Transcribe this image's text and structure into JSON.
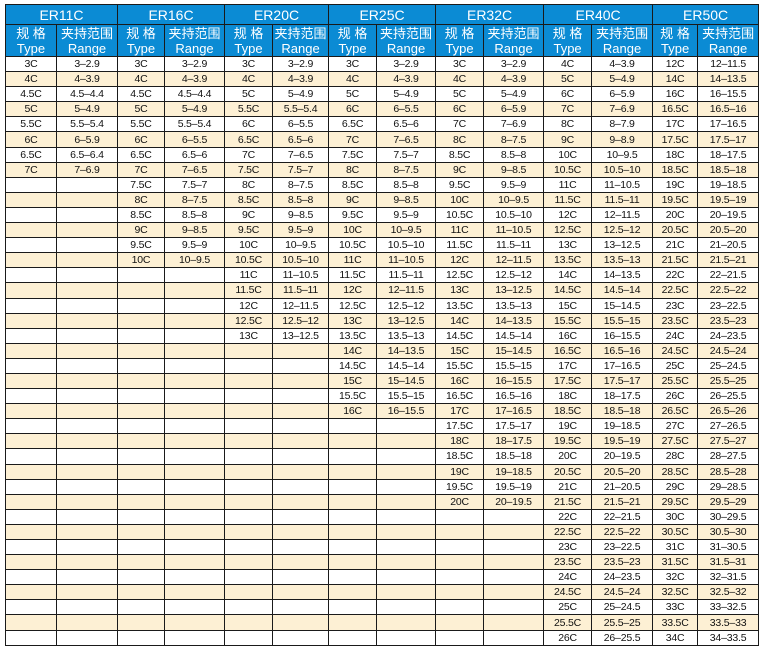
{
  "colors": {
    "header_bg": "#0b8bd4",
    "header_text": "#ffffff",
    "alt_row_bg": "#fdf0d4",
    "border": "#1a1a1a"
  },
  "headers": {
    "type_cn": "规 格",
    "type_en": "Type",
    "range_cn": "夹持范围",
    "range_en": "Range"
  },
  "groups": [
    {
      "name": "ER11C",
      "rows": [
        [
          "3C",
          "3–2.9"
        ],
        [
          "4C",
          "4–3.9"
        ],
        [
          "4.5C",
          "4.5–4.4"
        ],
        [
          "5C",
          "5–4.9"
        ],
        [
          "5.5C",
          "5.5–5.4"
        ],
        [
          "6C",
          "6–5.9"
        ],
        [
          "6.5C",
          "6.5–6.4"
        ],
        [
          "7C",
          "7–6.9"
        ]
      ]
    },
    {
      "name": "ER16C",
      "rows": [
        [
          "3C",
          "3–2.9"
        ],
        [
          "4C",
          "4–3.9"
        ],
        [
          "4.5C",
          "4.5–4.4"
        ],
        [
          "5C",
          "5–4.9"
        ],
        [
          "5.5C",
          "5.5–5.4"
        ],
        [
          "6C",
          "6–5.5"
        ],
        [
          "6.5C",
          "6.5–6"
        ],
        [
          "7C",
          "7–6.5"
        ],
        [
          "7.5C",
          "7.5–7"
        ],
        [
          "8C",
          "8–7.5"
        ],
        [
          "8.5C",
          "8.5–8"
        ],
        [
          "9C",
          "9–8.5"
        ],
        [
          "9.5C",
          "9.5–9"
        ],
        [
          "10C",
          "10–9.5"
        ]
      ]
    },
    {
      "name": "ER20C",
      "rows": [
        [
          "3C",
          "3–2.9"
        ],
        [
          "4C",
          "4–3.9"
        ],
        [
          "5C",
          "5–4.9"
        ],
        [
          "5.5C",
          "5.5–5.4"
        ],
        [
          "6C",
          "6–5.5"
        ],
        [
          "6.5C",
          "6.5–6"
        ],
        [
          "7C",
          "7–6.5"
        ],
        [
          "7.5C",
          "7.5–7"
        ],
        [
          "8C",
          "8–7.5"
        ],
        [
          "8.5C",
          "8.5–8"
        ],
        [
          "9C",
          "9–8.5"
        ],
        [
          "9.5C",
          "9.5–9"
        ],
        [
          "10C",
          "10–9.5"
        ],
        [
          "10.5C",
          "10.5–10"
        ],
        [
          "11C",
          "11–10.5"
        ],
        [
          "11.5C",
          "11.5–11"
        ],
        [
          "12C",
          "12–11.5"
        ],
        [
          "12.5C",
          "12.5–12"
        ],
        [
          "13C",
          "13–12.5"
        ]
      ]
    },
    {
      "name": "ER25C",
      "rows": [
        [
          "3C",
          "3–2.9"
        ],
        [
          "4C",
          "4–3.9"
        ],
        [
          "5C",
          "5–4.9"
        ],
        [
          "6C",
          "6–5.5"
        ],
        [
          "6.5C",
          "6.5–6"
        ],
        [
          "7C",
          "7–6.5"
        ],
        [
          "7.5C",
          "7.5–7"
        ],
        [
          "8C",
          "8–7.5"
        ],
        [
          "8.5C",
          "8.5–8"
        ],
        [
          "9C",
          "9–8.5"
        ],
        [
          "9.5C",
          "9.5–9"
        ],
        [
          "10C",
          "10–9.5"
        ],
        [
          "10.5C",
          "10.5–10"
        ],
        [
          "11C",
          "11–10.5"
        ],
        [
          "11.5C",
          "11.5–11"
        ],
        [
          "12C",
          "12–11.5"
        ],
        [
          "12.5C",
          "12.5–12"
        ],
        [
          "13C",
          "13–12.5"
        ],
        [
          "13.5C",
          "13.5–13"
        ],
        [
          "14C",
          "14–13.5"
        ],
        [
          "14.5C",
          "14.5–14"
        ],
        [
          "15C",
          "15–14.5"
        ],
        [
          "15.5C",
          "15.5–15"
        ],
        [
          "16C",
          "16–15.5"
        ]
      ]
    },
    {
      "name": "ER32C",
      "rows": [
        [
          "3C",
          "3–2.9"
        ],
        [
          "4C",
          "4–3.9"
        ],
        [
          "5C",
          "5–4.9"
        ],
        [
          "6C",
          "6–5.9"
        ],
        [
          "7C",
          "7–6.9"
        ],
        [
          "8C",
          "8–7.5"
        ],
        [
          "8.5C",
          "8.5–8"
        ],
        [
          "9C",
          "9–8.5"
        ],
        [
          "9.5C",
          "9.5–9"
        ],
        [
          "10C",
          "10–9.5"
        ],
        [
          "10.5C",
          "10.5–10"
        ],
        [
          "11C",
          "11–10.5"
        ],
        [
          "11.5C",
          "11.5–11"
        ],
        [
          "12C",
          "12–11.5"
        ],
        [
          "12.5C",
          "12.5–12"
        ],
        [
          "13C",
          "13–12.5"
        ],
        [
          "13.5C",
          "13.5–13"
        ],
        [
          "14C",
          "14–13.5"
        ],
        [
          "14.5C",
          "14.5–14"
        ],
        [
          "15C",
          "15–14.5"
        ],
        [
          "15.5C",
          "15.5–15"
        ],
        [
          "16C",
          "16–15.5"
        ],
        [
          "16.5C",
          "16.5–16"
        ],
        [
          "17C",
          "17–16.5"
        ],
        [
          "17.5C",
          "17.5–17"
        ],
        [
          "18C",
          "18–17.5"
        ],
        [
          "18.5C",
          "18.5–18"
        ],
        [
          "19C",
          "19–18.5"
        ],
        [
          "19.5C",
          "19.5–19"
        ],
        [
          "20C",
          "20–19.5"
        ]
      ]
    },
    {
      "name": "ER40C",
      "rows": [
        [
          "4C",
          "4–3.9"
        ],
        [
          "5C",
          "5–4.9"
        ],
        [
          "6C",
          "6–5.9"
        ],
        [
          "7C",
          "7–6.9"
        ],
        [
          "8C",
          "8–7.9"
        ],
        [
          "9C",
          "9–8.9"
        ],
        [
          "10C",
          "10–9.5"
        ],
        [
          "10.5C",
          "10.5–10"
        ],
        [
          "11C",
          "11–10.5"
        ],
        [
          "11.5C",
          "11.5–11"
        ],
        [
          "12C",
          "12–11.5"
        ],
        [
          "12.5C",
          "12.5–12"
        ],
        [
          "13C",
          "13–12.5"
        ],
        [
          "13.5C",
          "13.5–13"
        ],
        [
          "14C",
          "14–13.5"
        ],
        [
          "14.5C",
          "14.5–14"
        ],
        [
          "15C",
          "15–14.5"
        ],
        [
          "15.5C",
          "15.5–15"
        ],
        [
          "16C",
          "16–15.5"
        ],
        [
          "16.5C",
          "16.5–16"
        ],
        [
          "17C",
          "17–16.5"
        ],
        [
          "17.5C",
          "17.5–17"
        ],
        [
          "18C",
          "18–17.5"
        ],
        [
          "18.5C",
          "18.5–18"
        ],
        [
          "19C",
          "19–18.5"
        ],
        [
          "19.5C",
          "19.5–19"
        ],
        [
          "20C",
          "20–19.5"
        ],
        [
          "20.5C",
          "20.5–20"
        ],
        [
          "21C",
          "21–20.5"
        ],
        [
          "21.5C",
          "21.5–21"
        ],
        [
          "22C",
          "22–21.5"
        ],
        [
          "22.5C",
          "22.5–22"
        ],
        [
          "23C",
          "23–22.5"
        ],
        [
          "23.5C",
          "23.5–23"
        ],
        [
          "24C",
          "24–23.5"
        ],
        [
          "24.5C",
          "24.5–24"
        ],
        [
          "25C",
          "25–24.5"
        ],
        [
          "25.5C",
          "25.5–25"
        ],
        [
          "26C",
          "26–25.5"
        ]
      ]
    },
    {
      "name": "ER50C",
      "rows": [
        [
          "12C",
          "12–11.5"
        ],
        [
          "14C",
          "14–13.5"
        ],
        [
          "16C",
          "16–15.5"
        ],
        [
          "16.5C",
          "16.5–16"
        ],
        [
          "17C",
          "17–16.5"
        ],
        [
          "17.5C",
          "17.5–17"
        ],
        [
          "18C",
          "18–17.5"
        ],
        [
          "18.5C",
          "18.5–18"
        ],
        [
          "19C",
          "19–18.5"
        ],
        [
          "19.5C",
          "19.5–19"
        ],
        [
          "20C",
          "20–19.5"
        ],
        [
          "20.5C",
          "20.5–20"
        ],
        [
          "21C",
          "21–20.5"
        ],
        [
          "21.5C",
          "21.5–21"
        ],
        [
          "22C",
          "22–21.5"
        ],
        [
          "22.5C",
          "22.5–22"
        ],
        [
          "23C",
          "23–22.5"
        ],
        [
          "23.5C",
          "23.5–23"
        ],
        [
          "24C",
          "24–23.5"
        ],
        [
          "24.5C",
          "24.5–24"
        ],
        [
          "25C",
          "25–24.5"
        ],
        [
          "25.5C",
          "25.5–25"
        ],
        [
          "26C",
          "26–25.5"
        ],
        [
          "26.5C",
          "26.5–26"
        ],
        [
          "27C",
          "27–26.5"
        ],
        [
          "27.5C",
          "27.5–27"
        ],
        [
          "28C",
          "28–27.5"
        ],
        [
          "28.5C",
          "28.5–28"
        ],
        [
          "29C",
          "29–28.5"
        ],
        [
          "29.5C",
          "29.5–29"
        ],
        [
          "30C",
          "30–29.5"
        ],
        [
          "30.5C",
          "30.5–30"
        ],
        [
          "31C",
          "31–30.5"
        ],
        [
          "31.5C",
          "31.5–31"
        ],
        [
          "32C",
          "32–31.5"
        ],
        [
          "32.5C",
          "32.5–32"
        ],
        [
          "33C",
          "33–32.5"
        ],
        [
          "33.5C",
          "33.5–33"
        ],
        [
          "34C",
          "34–33.5"
        ]
      ]
    }
  ]
}
